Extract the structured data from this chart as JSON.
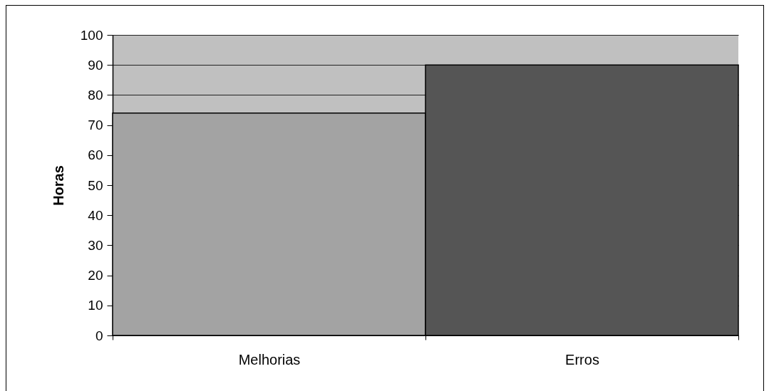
{
  "chart_data": {
    "type": "bar",
    "ylabel": "Horas",
    "categories": [
      "Melhorias",
      "Erros"
    ],
    "values": [
      74,
      90
    ],
    "colors": [
      "#a3a3a3",
      "#555555"
    ],
    "ylim": [
      0,
      100
    ],
    "yticks": [
      0,
      10,
      20,
      30,
      40,
      50,
      60,
      70,
      80,
      90,
      100
    ],
    "grid": "y"
  }
}
